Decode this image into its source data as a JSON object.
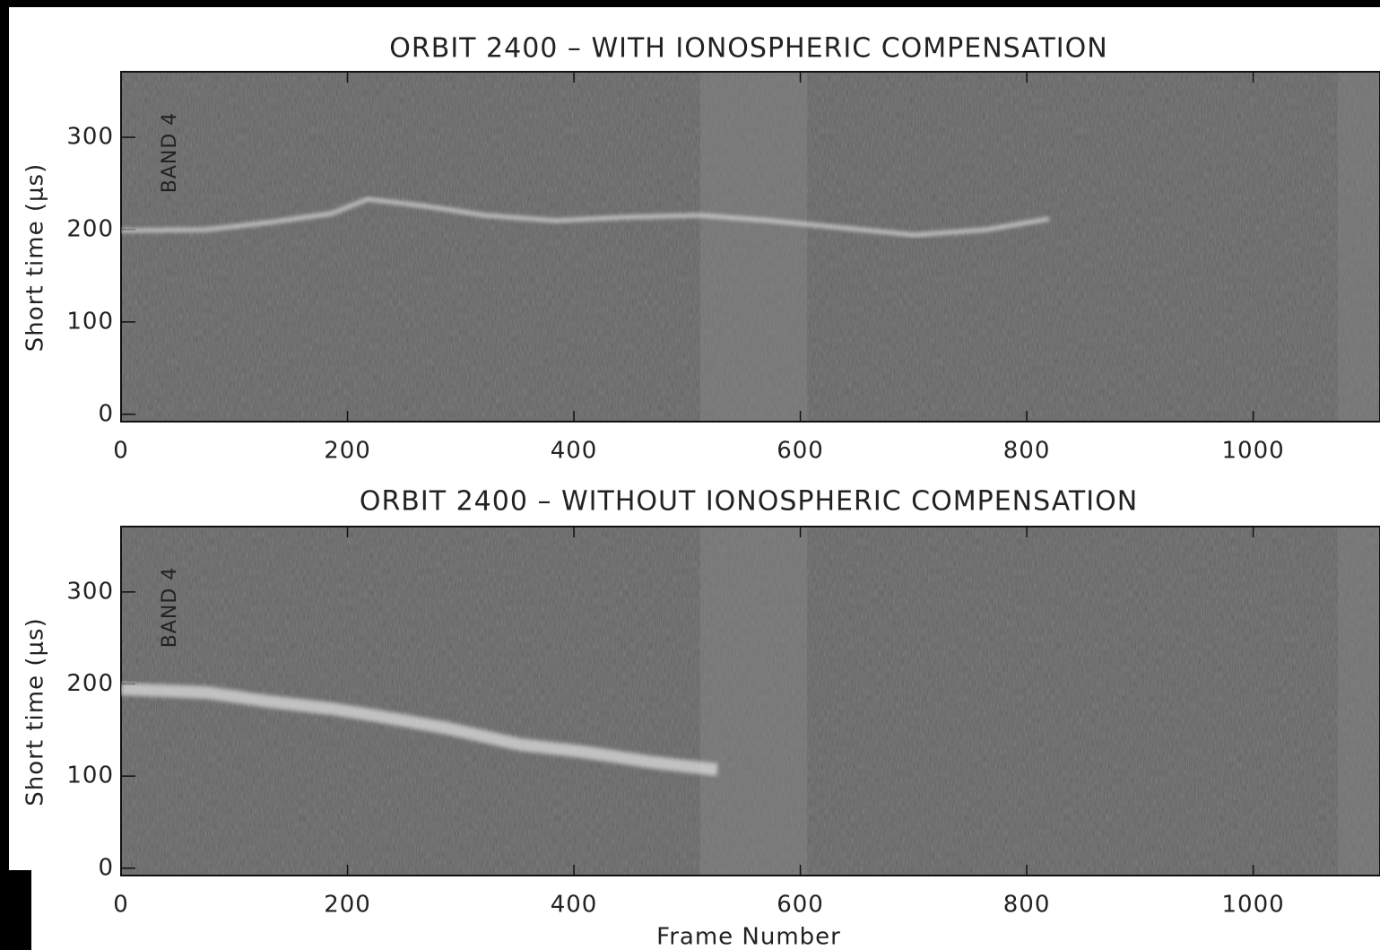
{
  "chart_data": [
    {
      "type": "radargram",
      "title": "ORBIT 2400 – WITH IONOSPHERIC COMPENSATION",
      "ylabel": "Short time (μs)",
      "annotation": "BAND 4",
      "xlim": [
        0,
        1112
      ],
      "ylim": [
        -8,
        371
      ],
      "xticks": [
        0,
        200,
        400,
        600,
        800,
        1000
      ],
      "yticks": [
        0,
        100,
        200,
        300
      ]
    },
    {
      "type": "radargram",
      "title": "ORBIT 2400 – WITHOUT IONOSPHERIC COMPENSATION",
      "xlabel": "Frame Number",
      "ylabel": "Short time (μs)",
      "annotation": "BAND 4",
      "xlim": [
        0,
        1112
      ],
      "ylim": [
        -8,
        371
      ],
      "xticks": [
        0,
        200,
        400,
        600,
        800,
        1000
      ],
      "yticks": [
        0,
        100,
        200,
        300
      ]
    }
  ]
}
